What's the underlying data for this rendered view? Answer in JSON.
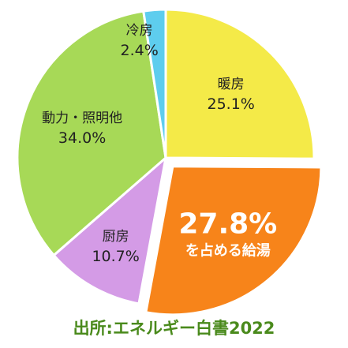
{
  "chart_data": {
    "type": "pie",
    "title": "",
    "slices": [
      {
        "label": "暖房",
        "value": 25.1,
        "value_text": "25.1%",
        "color": "#f4ea48"
      },
      {
        "label": "を占める給湯",
        "value": 27.8,
        "value_text": "27.8%",
        "color": "#f7841a"
      },
      {
        "label": "厨房",
        "value": 10.7,
        "value_text": "10.7%",
        "color": "#d49be6"
      },
      {
        "label": "動力・照明他",
        "value": 34.0,
        "value_text": "34.0%",
        "color": "#a7d957"
      },
      {
        "label": "冷房",
        "value": 2.4,
        "value_text": "2.4%",
        "color": "#5ecdee"
      }
    ],
    "exploded_slice": "を占める給湯",
    "start": "top",
    "direction": "clockwise"
  },
  "footer": {
    "source": "出所:エネルギー白書2022"
  }
}
